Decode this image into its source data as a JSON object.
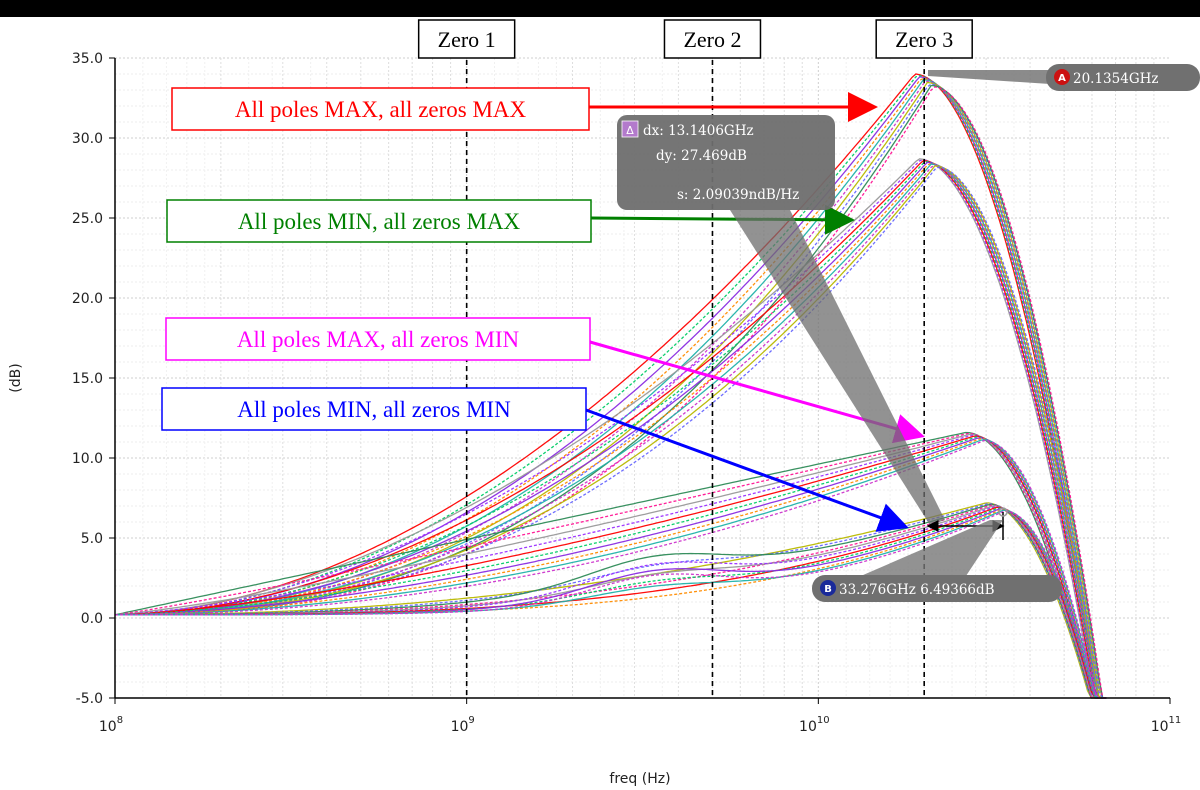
{
  "chart_data": {
    "type": "line",
    "xlabel": "freq (Hz)",
    "ylabel": "(dB)",
    "xscale": "log",
    "xlim": [
      100000000,
      100000000000
    ],
    "ylim": [
      -5,
      35
    ],
    "grid": true,
    "y_ticks": [
      "35.0",
      "30.0",
      "25.0",
      "20.0",
      "15.0",
      "10.0",
      "5.0",
      "0.0",
      "-5.0"
    ],
    "x_ticks": [
      {
        "base": "10",
        "exp": "8"
      },
      {
        "base": "10",
        "exp": "9"
      },
      {
        "base": "10",
        "exp": "10"
      },
      {
        "base": "10",
        "exp": "11"
      }
    ],
    "zero_markers": [
      {
        "label": "Zero 1",
        "freq": 1000000000
      },
      {
        "label": "Zero 2",
        "freq": 5000000000
      },
      {
        "label": "Zero 3",
        "freq": 20000000000
      }
    ],
    "groups": [
      {
        "label": "All poles MAX, all zeros MAX",
        "color": "#ff0000",
        "peak_freq": 20000000000,
        "peak_db": 34
      },
      {
        "label": "All poles MIN, all zeros MAX",
        "color": "#008000",
        "peak_freq": 20500000000,
        "peak_db": 28.8
      },
      {
        "label": "All poles MAX, all zeros MIN",
        "color": "#ff00ff",
        "peak_freq": 28000000000,
        "peak_db": 11.8
      },
      {
        "label": "All poles MIN, all zeros MIN",
        "color": "#0000ff",
        "peak_freq": 32000000000,
        "peak_db": 7.4
      }
    ],
    "series_colors": [
      "#ff0000",
      "#00cc66",
      "#8a2be2",
      "#ff8c00",
      "#20b2aa",
      "#cc33cc",
      "#b8b800",
      "#6666ff",
      "#2e8b57",
      "#ff1493",
      "#999999",
      "#9b30ff"
    ],
    "markers": {
      "A": {
        "label": "20.1354GHz",
        "badge": "A"
      },
      "B": {
        "label": "33.276GHz 6.49366dB",
        "badge": "B"
      },
      "delta": {
        "badge": "Δ",
        "dx": "dx: 13.1406GHz",
        "dy": "dy: 27.469dB",
        "s": "s: 2.09039ndB/Hz"
      }
    }
  }
}
